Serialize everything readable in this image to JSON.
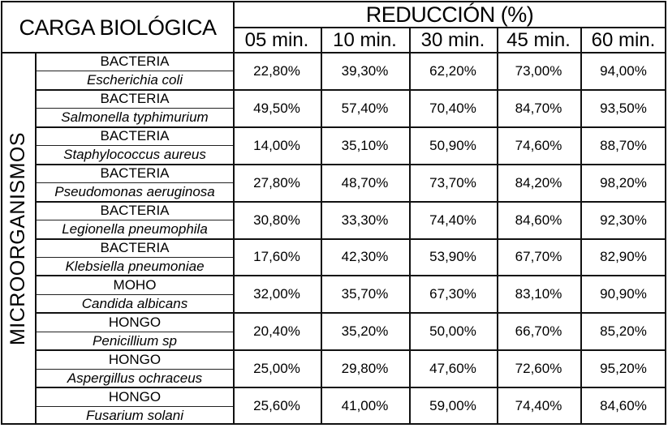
{
  "header": {
    "carga_label": "CARGA BIOLÓGICA",
    "reduccion_label": "REDUCCIÓN (%)",
    "times": [
      "05 min.",
      "10 min.",
      "30 min.",
      "45 min.",
      "60 min."
    ]
  },
  "side_label": "MICROORGANISMOS",
  "rows": [
    {
      "type": "BACTERIA",
      "species": "Escherichia coli",
      "values": [
        "22,80%",
        "39,30%",
        "62,20%",
        "73,00%",
        "94,00%"
      ]
    },
    {
      "type": "BACTERIA",
      "species": "Salmonella typhimurium",
      "values": [
        "49,50%",
        "57,40%",
        "70,40%",
        "84,70%",
        "93,50%"
      ]
    },
    {
      "type": "BACTERIA",
      "species": "Staphylococcus aureus",
      "values": [
        "14,00%",
        "35,10%",
        "50,90%",
        "74,60%",
        "88,70%"
      ]
    },
    {
      "type": "BACTERIA",
      "species": "Pseudomonas aeruginosa",
      "values": [
        "27,80%",
        "48,70%",
        "73,70%",
        "84,20%",
        "98,20%"
      ]
    },
    {
      "type": "BACTERIA",
      "species": "Legionella pneumophila",
      "values": [
        "30,80%",
        "33,30%",
        "74,40%",
        "84,60%",
        "92,30%"
      ]
    },
    {
      "type": "BACTERIA",
      "species": "Klebsiella pneumoniae",
      "values": [
        "17,60%",
        "42,30%",
        "53,90%",
        "67,70%",
        "82,90%"
      ]
    },
    {
      "type": "MOHO",
      "species": "Candida albicans",
      "values": [
        "32,00%",
        "35,70%",
        "67,30%",
        "83,10%",
        "90,90%"
      ]
    },
    {
      "type": "HONGO",
      "species": "Penicillium sp",
      "values": [
        "20,40%",
        "35,20%",
        "50,00%",
        "66,70%",
        "85,20%"
      ]
    },
    {
      "type": "HONGO",
      "species": "Aspergillus ochraceus",
      "values": [
        "25,00%",
        "29,80%",
        "47,60%",
        "72,60%",
        "95,20%"
      ]
    },
    {
      "type": "HONGO",
      "species": "Fusarium solani",
      "values": [
        "25,60%",
        "41,00%",
        "59,00%",
        "74,40%",
        "84,60%"
      ]
    }
  ],
  "chart_data": {
    "type": "table",
    "title": "REDUCCIÓN (%)",
    "row_header": "CARGA BIOLÓGICA",
    "row_group_label": "MICROORGANISMOS",
    "columns": [
      "05 min.",
      "10 min.",
      "30 min.",
      "45 min.",
      "60 min."
    ],
    "rows": [
      {
        "type": "BACTERIA",
        "species": "Escherichia coli",
        "values": [
          22.8,
          39.3,
          62.2,
          73.0,
          94.0
        ]
      },
      {
        "type": "BACTERIA",
        "species": "Salmonella typhimurium",
        "values": [
          49.5,
          57.4,
          70.4,
          84.7,
          93.5
        ]
      },
      {
        "type": "BACTERIA",
        "species": "Staphylococcus aureus",
        "values": [
          14.0,
          35.1,
          50.9,
          74.6,
          88.7
        ]
      },
      {
        "type": "BACTERIA",
        "species": "Pseudomonas aeruginosa",
        "values": [
          27.8,
          48.7,
          73.7,
          84.2,
          98.2
        ]
      },
      {
        "type": "BACTERIA",
        "species": "Legionella pneumophila",
        "values": [
          30.8,
          33.3,
          74.4,
          84.6,
          92.3
        ]
      },
      {
        "type": "BACTERIA",
        "species": "Klebsiella pneumoniae",
        "values": [
          17.6,
          42.3,
          53.9,
          67.7,
          82.9
        ]
      },
      {
        "type": "MOHO",
        "species": "Candida albicans",
        "values": [
          32.0,
          35.7,
          67.3,
          83.1,
          90.9
        ]
      },
      {
        "type": "HONGO",
        "species": "Penicillium sp",
        "values": [
          20.4,
          35.2,
          50.0,
          66.7,
          85.2
        ]
      },
      {
        "type": "HONGO",
        "species": "Aspergillus ochraceus",
        "values": [
          25.0,
          29.8,
          47.6,
          72.6,
          95.2
        ]
      },
      {
        "type": "HONGO",
        "species": "Fusarium solani",
        "values": [
          25.6,
          41.0,
          59.0,
          74.4,
          84.6
        ]
      }
    ],
    "unit": "%"
  }
}
